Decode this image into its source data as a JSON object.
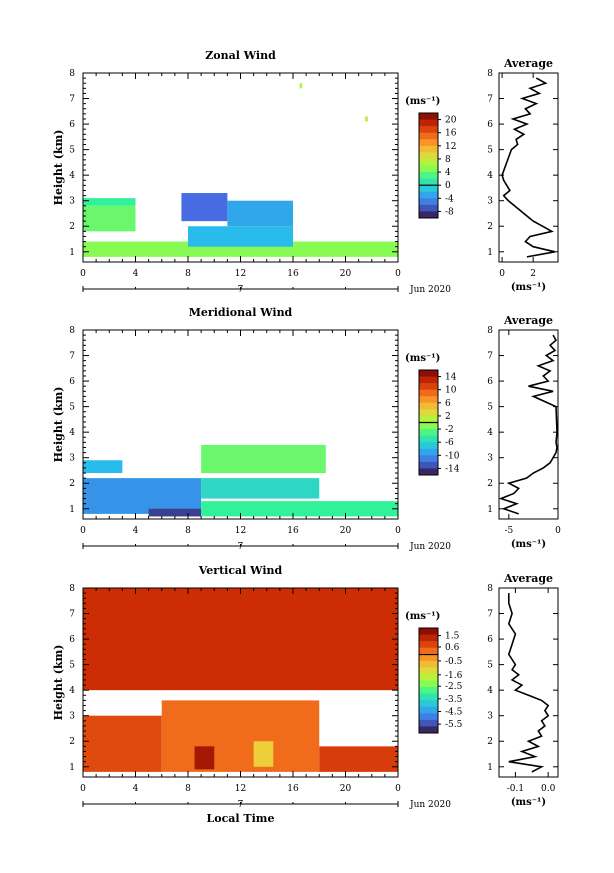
{
  "chart_data": [
    {
      "type": "heatmap",
      "title": "Zonal Wind",
      "ylabel": "Height (km)",
      "xlabel": "",
      "xlim": [
        0,
        24
      ],
      "ylim": [
        0.6,
        8
      ],
      "xticks": [
        "0",
        "4",
        "8",
        "12",
        "16",
        "20",
        "0"
      ],
      "yticks": [
        "1",
        "2",
        "3",
        "4",
        "5",
        "6",
        "7",
        "8"
      ],
      "date_day": "7",
      "date_label": "Jun 2020",
      "colorbar": {
        "unit": "(ms⁻¹)",
        "ticks": [
          "20",
          "16",
          "12",
          "8",
          "4",
          "0",
          "-4",
          "-8"
        ],
        "vmin": -10,
        "vmax": 22
      },
      "regions": [
        {
          "t0": 0,
          "t1": 4,
          "h0": 2.8,
          "h1": 3.1,
          "v": 2
        },
        {
          "t0": 0,
          "t1": 4,
          "h0": 1.8,
          "h1": 2.8,
          "v": 4
        },
        {
          "t0": 0,
          "t1": 24,
          "h0": 0.8,
          "h1": 1.4,
          "v": 5
        },
        {
          "t0": 7.5,
          "t1": 11,
          "h0": 2.2,
          "h1": 3.3,
          "v": -6
        },
        {
          "t0": 11,
          "t1": 16,
          "h0": 2.0,
          "h1": 3.0,
          "v": -3
        },
        {
          "t0": 8,
          "t1": 16,
          "h0": 1.2,
          "h1": 2.0,
          "v": -2
        },
        {
          "t0": 16.5,
          "t1": 16.7,
          "h0": 7.4,
          "h1": 7.6,
          "v": 6
        },
        {
          "t0": 21.5,
          "t1": 21.7,
          "h0": 6.1,
          "h1": 6.3,
          "v": 8
        }
      ],
      "profile": {
        "title": "Average",
        "xlim": [
          -0.2,
          3.6
        ],
        "xticks": [
          "0",
          "2"
        ],
        "xunit": "(ms⁻¹)",
        "heights": [
          0.8,
          1.0,
          1.2,
          1.4,
          1.6,
          1.8,
          2.0,
          2.2,
          2.4,
          2.6,
          2.8,
          3.0,
          3.2,
          3.4,
          3.6,
          3.8,
          4.0,
          5.0,
          5.2,
          5.4,
          5.6,
          5.8,
          6.0,
          6.2,
          6.4,
          6.6,
          6.8,
          7.0,
          7.2,
          7.4,
          7.6,
          7.8
        ],
        "values": [
          1.6,
          3.4,
          2.0,
          1.5,
          1.8,
          3.2,
          2.6,
          2.0,
          1.6,
          1.2,
          0.8,
          0.4,
          0.1,
          0.5,
          0.3,
          0.1,
          0.0,
          0.6,
          1.0,
          0.9,
          1.4,
          0.8,
          1.6,
          0.7,
          1.8,
          1.5,
          2.2,
          1.3,
          2.4,
          1.8,
          2.8,
          2.2
        ]
      }
    },
    {
      "type": "heatmap",
      "title": "Meridional Wind",
      "ylabel": "Height (km)",
      "xlabel": "",
      "xlim": [
        0,
        24
      ],
      "ylim": [
        0.6,
        8
      ],
      "xticks": [
        "0",
        "4",
        "8",
        "12",
        "16",
        "20",
        "0"
      ],
      "yticks": [
        "1",
        "2",
        "3",
        "4",
        "5",
        "6",
        "7",
        "8"
      ],
      "date_day": "7",
      "date_label": "Jun 2020",
      "colorbar": {
        "unit": "(ms⁻¹)",
        "ticks": [
          "14",
          "10",
          "6",
          "2",
          "-2",
          "-6",
          "-10",
          "-14"
        ],
        "vmin": -16,
        "vmax": 16
      },
      "regions": [
        {
          "t0": 0,
          "t1": 3,
          "h0": 2.4,
          "h1": 2.9,
          "v": -8
        },
        {
          "t0": 0,
          "t1": 9,
          "h0": 0.8,
          "h1": 2.2,
          "v": -10
        },
        {
          "t0": 9,
          "t1": 18,
          "h0": 1.4,
          "h1": 2.2,
          "v": -6
        },
        {
          "t0": 5,
          "t1": 9,
          "h0": 0.7,
          "h1": 1.0,
          "v": -14
        },
        {
          "t0": 9,
          "t1": 24,
          "h0": 0.7,
          "h1": 1.3,
          "v": -4
        },
        {
          "t0": 9,
          "t1": 18.5,
          "h0": 2.4,
          "h1": 3.5,
          "v": -2
        }
      ],
      "profile": {
        "title": "Average",
        "xlim": [
          -6,
          0
        ],
        "xticks": [
          "-5",
          "0"
        ],
        "xunit": "(ms⁻¹)",
        "heights": [
          0.8,
          1.0,
          1.2,
          1.4,
          1.6,
          1.8,
          2.0,
          2.2,
          2.4,
          2.6,
          2.8,
          3.0,
          3.2,
          3.4,
          3.6,
          4.0,
          5.0,
          5.4,
          5.6,
          5.8,
          6.0,
          6.2,
          6.4,
          6.6,
          6.8,
          7.0,
          7.2,
          7.4,
          7.6,
          7.8
        ],
        "values": [
          -4.0,
          -5.5,
          -4.2,
          -5.8,
          -4.5,
          -4.0,
          -5.0,
          -3.2,
          -2.5,
          -1.5,
          -0.8,
          -0.5,
          -0.2,
          -0.1,
          -0.2,
          -0.1,
          -0.2,
          -2.5,
          -0.5,
          -3.0,
          -1.0,
          -1.5,
          -0.8,
          -2.0,
          -0.5,
          -1.2,
          -0.3,
          -0.8,
          -0.2,
          -0.5
        ]
      }
    },
    {
      "type": "heatmap",
      "title": "Vertical Wind",
      "ylabel": "Height (km)",
      "xlabel": "Local Time",
      "xlim": [
        0,
        24
      ],
      "ylim": [
        0.6,
        8
      ],
      "xticks": [
        "0",
        "4",
        "8",
        "12",
        "16",
        "20",
        "0"
      ],
      "yticks": [
        "1",
        "2",
        "3",
        "4",
        "5",
        "6",
        "7",
        "8"
      ],
      "date_day": "7",
      "date_label": "Jun 2020",
      "colorbar": {
        "unit": "(ms⁻¹)",
        "ticks": [
          "1.5",
          "0.6",
          "-0.5",
          "-1.6",
          "-2.5",
          "-3.5",
          "-4.5",
          "-5.5"
        ],
        "vmin": -6.2,
        "vmax": 2.1
      },
      "regions": [
        {
          "t0": 0,
          "t1": 24,
          "h0": 4.0,
          "h1": 8.0,
          "v": 1.1
        },
        {
          "t0": 0,
          "t1": 6,
          "h0": 0.8,
          "h1": 3.0,
          "v": 0.7
        },
        {
          "t0": 6,
          "t1": 18,
          "h0": 0.8,
          "h1": 3.6,
          "v": 0.3
        },
        {
          "t0": 18,
          "t1": 24,
          "h0": 0.8,
          "h1": 1.8,
          "v": 0.9
        },
        {
          "t0": 8.5,
          "t1": 10,
          "h0": 0.9,
          "h1": 1.8,
          "v": 1.6
        },
        {
          "t0": 13,
          "t1": 14.5,
          "h0": 1.0,
          "h1": 2.0,
          "v": -1.0
        }
      ],
      "profile": {
        "title": "Average",
        "xlim": [
          -0.15,
          0.03
        ],
        "xticks": [
          "-0.1",
          "0.0"
        ],
        "xunit": "(ms⁻¹)",
        "heights": [
          0.8,
          1.0,
          1.2,
          1.4,
          1.6,
          1.8,
          2.0,
          2.2,
          2.4,
          2.6,
          2.8,
          3.0,
          3.2,
          3.4,
          3.6,
          3.8,
          4.0,
          4.2,
          4.4,
          4.6,
          4.8,
          5.0,
          5.4,
          5.8,
          6.2,
          6.6,
          7.0,
          7.4,
          7.8
        ],
        "values": [
          -0.05,
          -0.02,
          -0.12,
          -0.04,
          -0.08,
          -0.03,
          -0.06,
          -0.02,
          -0.03,
          -0.01,
          -0.02,
          0.0,
          -0.01,
          0.0,
          -0.02,
          -0.06,
          -0.1,
          -0.08,
          -0.11,
          -0.09,
          -0.11,
          -0.1,
          -0.12,
          -0.11,
          -0.1,
          -0.12,
          -0.11,
          -0.12,
          -0.12
        ]
      }
    }
  ]
}
